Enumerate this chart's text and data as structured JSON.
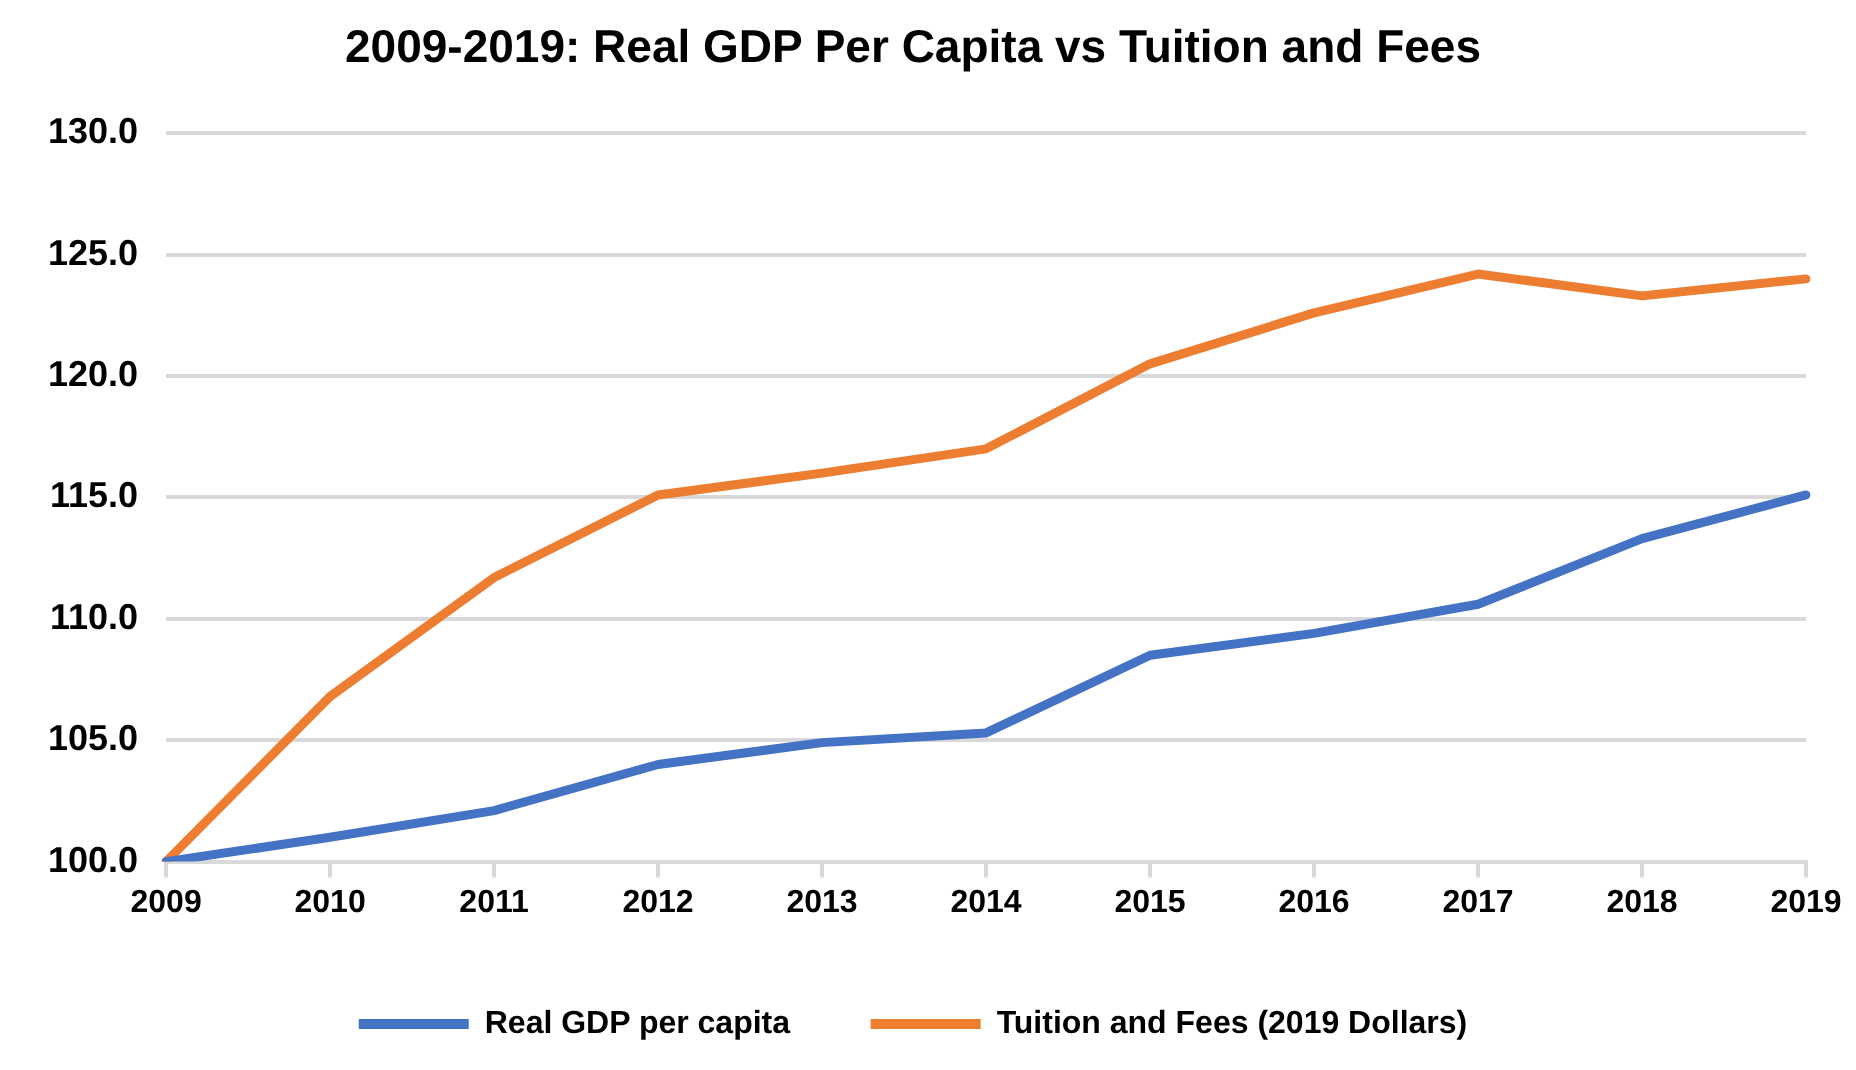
{
  "chart_data": {
    "type": "line",
    "title": "2009-2019: Real GDP Per Capita vs Tuition and Fees",
    "categories": [
      "2009",
      "2010",
      "2011",
      "2012",
      "2013",
      "2014",
      "2015",
      "2016",
      "2017",
      "2018",
      "2019"
    ],
    "series": [
      {
        "name": "Real GDP per capita",
        "color": "#4472c4",
        "values": [
          100.0,
          101.0,
          102.1,
          104.0,
          104.9,
          105.3,
          108.5,
          109.4,
          110.6,
          113.3,
          115.1
        ]
      },
      {
        "name": "Tuition and Fees (2019 Dollars)",
        "color": "#ed7d31",
        "values": [
          100.0,
          106.8,
          111.7,
          115.1,
          116.0,
          117.0,
          120.5,
          122.6,
          124.2,
          123.3,
          124.0
        ]
      }
    ],
    "ylim": [
      100,
      130
    ],
    "yticks": [
      {
        "value": 100,
        "label": "100.0"
      },
      {
        "value": 105,
        "label": "105.0"
      },
      {
        "value": 110,
        "label": "110.0"
      },
      {
        "value": 115,
        "label": "115.0"
      },
      {
        "value": 120,
        "label": "120.0"
      },
      {
        "value": 125,
        "label": "125.0"
      },
      {
        "value": 130,
        "label": "130.0"
      }
    ],
    "grid": "y",
    "legend": "bottom",
    "marker": "none",
    "line_style": "solid"
  }
}
